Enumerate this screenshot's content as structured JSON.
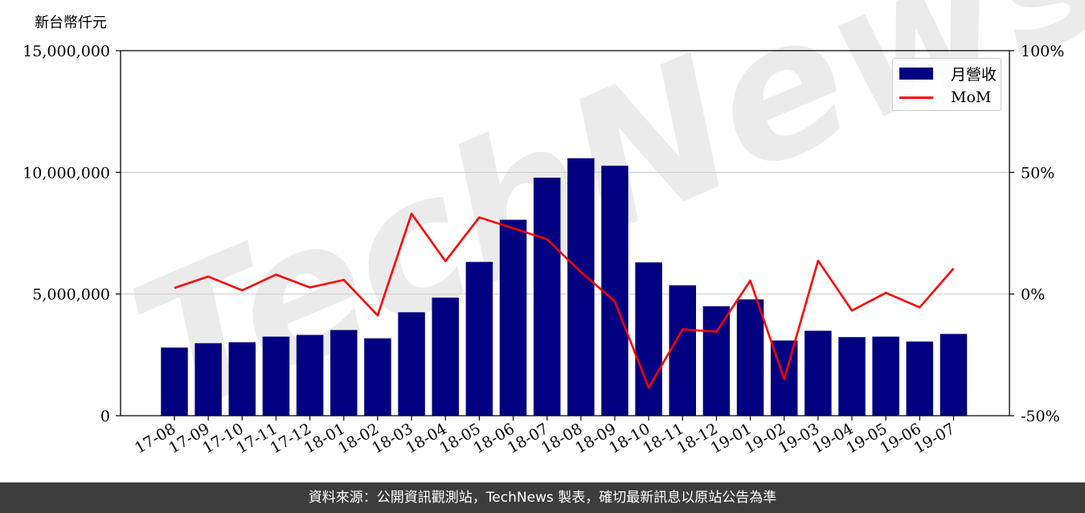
{
  "chart_data": {
    "type": "bar",
    "y_unit_label": "新台幣仟元",
    "categories": [
      "17-08",
      "17-09",
      "17-10",
      "17-11",
      "17-12",
      "18-01",
      "18-02",
      "18-03",
      "18-04",
      "18-05",
      "18-06",
      "18-07",
      "18-08",
      "18-09",
      "18-10",
      "18-11",
      "18-12",
      "19-01",
      "19-02",
      "19-03",
      "19-04",
      "19-05",
      "19-06",
      "19-07"
    ],
    "series": [
      {
        "name": "月營收",
        "type": "bar",
        "axis": "left",
        "color": "#000080",
        "values": [
          2800000,
          2980000,
          3020000,
          3250000,
          3320000,
          3520000,
          3180000,
          4250000,
          4850000,
          6320000,
          8050000,
          9780000,
          10580000,
          10270000,
          6300000,
          5360000,
          4500000,
          4780000,
          3090000,
          3490000,
          3230000,
          3250000,
          3050000,
          3360000
        ]
      },
      {
        "name": "MoM",
        "type": "line",
        "axis": "right",
        "color": "#ff0000",
        "values": [
          2.5,
          7.2,
          1.5,
          8.0,
          2.7,
          5.8,
          -8.8,
          33.0,
          13.5,
          31.5,
          27.0,
          22.5,
          9.0,
          -3.0,
          -38.5,
          -14.5,
          -15.5,
          5.5,
          -35.0,
          13.7,
          -6.8,
          0.5,
          -5.5,
          10.5
        ]
      }
    ],
    "ylim_left": [
      0,
      15000000
    ],
    "yticks_left": [
      "0",
      "5,000,000",
      "10,000,000",
      "15,000,000"
    ],
    "ylim_right": [
      -50,
      100
    ],
    "yticks_right": [
      "-50%",
      "0%",
      "50%",
      "100%"
    ],
    "grid": "horizontal",
    "legend_position": "top-right",
    "watermark": "TechNews"
  },
  "footer": {
    "source_text": "資料來源：公開資訊觀測站，TechNews 製表，確切最新訊息以原站公告為準"
  }
}
